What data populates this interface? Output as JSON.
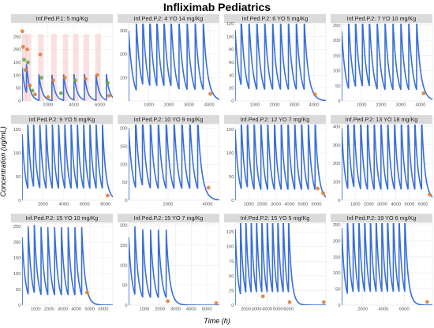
{
  "title": "Infliximab Pediatrics",
  "xlabel": "Time (h)",
  "ylabel": "Concentration (ug/mL)",
  "colors": {
    "line": "#3a6fd8",
    "obs_orange": "#e0803a",
    "obs_green": "#6aa84f",
    "band": "#f5c6c6"
  },
  "chart_data": [
    {
      "type": "line",
      "title": "Inf.Ped.P.1: 5 mg/Kg",
      "xlim": [
        0,
        7000
      ],
      "ylim": [
        0,
        300
      ],
      "xticks": [
        2000,
        4000,
        6000
      ],
      "yticks": [
        0,
        50,
        100,
        150,
        200,
        250
      ],
      "doses": [
        0,
        340,
        1300,
        2300,
        3200,
        4000,
        4800,
        5700,
        6500
      ],
      "peak": [
        130,
        110,
        100,
        100,
        100,
        100,
        100,
        100,
        100
      ],
      "halflife": 170,
      "observations": [
        {
          "x": 20,
          "y": 270,
          "c": "o"
        },
        {
          "x": 80,
          "y": 210,
          "c": "o"
        },
        {
          "x": 150,
          "y": 160,
          "c": "g"
        },
        {
          "x": 250,
          "y": 120,
          "c": "o"
        },
        {
          "x": 400,
          "y": 200,
          "c": "o"
        },
        {
          "x": 450,
          "y": 150,
          "c": "g"
        },
        {
          "x": 600,
          "y": 60,
          "c": "o"
        },
        {
          "x": 800,
          "y": 40,
          "c": "g"
        },
        {
          "x": 1000,
          "y": 25,
          "c": "o"
        },
        {
          "x": 1400,
          "y": 180,
          "c": "o"
        },
        {
          "x": 1500,
          "y": 90,
          "c": "g"
        },
        {
          "x": 2000,
          "y": 15,
          "c": "o"
        },
        {
          "x": 2400,
          "y": 80,
          "c": "o"
        },
        {
          "x": 3000,
          "y": 30,
          "c": "g"
        },
        {
          "x": 3300,
          "y": 90,
          "c": "o"
        },
        {
          "x": 4100,
          "y": 80,
          "c": "g"
        },
        {
          "x": 4900,
          "y": 85,
          "c": "o"
        },
        {
          "x": 5800,
          "y": 100,
          "c": "o"
        },
        {
          "x": 6600,
          "y": 70,
          "c": "g"
        },
        {
          "x": 6700,
          "y": 20,
          "c": "o"
        }
      ]
    },
    {
      "type": "line",
      "title": "Inf.Ped.P.2: 4 YO 14 mg/Kg",
      "xlim": [
        0,
        4500
      ],
      "ylim": [
        0,
        330
      ],
      "xticks": [
        1000,
        2000,
        3000,
        4000
      ],
      "yticks": [
        100,
        200,
        300
      ],
      "doses": [
        0,
        380,
        700,
        1050,
        1400,
        1750,
        2100,
        2500,
        2900,
        3300,
        3700
      ],
      "peak": [
        300
      ],
      "halflife": 140,
      "observations": [
        {
          "x": 4050,
          "y": 30,
          "c": "o"
        }
      ]
    },
    {
      "type": "line",
      "title": "Inf.Ped.P.2: 6 YO 5 mg/Kg",
      "xlim": [
        0,
        4600
      ],
      "ylim": [
        0,
        120
      ],
      "xticks": [
        1000,
        2000,
        3000,
        4000
      ],
      "yticks": [
        0,
        20,
        40,
        60,
        80,
        100,
        120
      ],
      "doses": [
        0,
        300,
        700,
        1100,
        1500,
        1900,
        2300,
        2700,
        3100,
        3500
      ],
      "peak": [
        110
      ],
      "halflife": 140,
      "observations": [
        {
          "x": 4050,
          "y": 10,
          "c": "o"
        }
      ]
    },
    {
      "type": "line",
      "title": "Inf.Ped.P.2: 7 YO 10 mg/Kg",
      "xlim": [
        0,
        4600
      ],
      "ylim": [
        0,
        255
      ],
      "xticks": [
        1000,
        2000,
        3000,
        4000
      ],
      "yticks": [
        0,
        50,
        100,
        150,
        200,
        250
      ],
      "doses": [
        0,
        350,
        700,
        1050,
        1400,
        1800,
        2200,
        2600,
        3000,
        3400,
        3800
      ],
      "peak": [
        230
      ],
      "halflife": 140,
      "observations": [
        {
          "x": 4150,
          "y": 25,
          "c": "o"
        }
      ]
    },
    {
      "type": "line",
      "title": "Inf.Ped.P.2: 9 YO 5 mg/Kg",
      "xlim": [
        0,
        8700
      ],
      "ylim": [
        0,
        160
      ],
      "xticks": [
        2000,
        4000,
        6000,
        8000
      ],
      "yticks": [
        0,
        50,
        100,
        150
      ],
      "doses": [
        0,
        550,
        1100,
        1700,
        2300,
        2900,
        3500,
        4100,
        4700,
        5300,
        5900,
        6500,
        7100,
        7700
      ],
      "peak": [
        140
      ],
      "halflife": 220,
      "observations": [
        {
          "x": 8200,
          "y": 10,
          "c": "o"
        }
      ]
    },
    {
      "type": "line",
      "title": "Inf.Ped.P.2: 10 YO 9 mg/Kg",
      "xlim": [
        0,
        4600
      ],
      "ylim": [
        0,
        210
      ],
      "xticks": [
        2000,
        4000
      ],
      "yticks": [
        0,
        50,
        100,
        150,
        200
      ],
      "doses": [
        0,
        350,
        700,
        1100,
        1500,
        1900,
        2300,
        2700,
        3100,
        3500
      ],
      "peak": [
        200
      ],
      "halflife": 140,
      "observations": [
        {
          "x": 4050,
          "y": 35,
          "c": "o"
        }
      ]
    },
    {
      "type": "line",
      "title": "Inf.Ped.P.2: 12 YO 7 mg/Kg",
      "xlim": [
        0,
        6700
      ],
      "ylim": [
        0,
        160
      ],
      "xticks": [
        1000,
        2000,
        3000,
        4000,
        5000,
        6000
      ],
      "yticks": [
        0,
        50,
        100,
        150
      ],
      "doses": [
        0,
        450,
        900,
        1400,
        1900,
        2400,
        2900,
        3400,
        3900,
        4400,
        4900,
        5400,
        5900
      ],
      "peak": [
        150
      ],
      "halflife": 170,
      "observations": [
        {
          "x": 6100,
          "y": 25,
          "c": "o"
        },
        {
          "x": 6500,
          "y": 15,
          "c": "o"
        }
      ]
    },
    {
      "type": "line",
      "title": "Inf.Ped.P.2: 13 YO 18 mg/Kg",
      "xlim": [
        0,
        6700
      ],
      "ylim": [
        0,
        410
      ],
      "xticks": [
        1000,
        2000,
        3000,
        4000,
        5000,
        6000
      ],
      "yticks": [
        0,
        100,
        200,
        300,
        400
      ],
      "doses": [
        0,
        450,
        900,
        1400,
        1900,
        2400,
        2900,
        3400,
        3900,
        4400,
        4900,
        5400,
        5900
      ],
      "peak": [
        390
      ],
      "halflife": 170,
      "observations": [
        {
          "x": 6500,
          "y": 30,
          "c": "o"
        }
      ]
    },
    {
      "type": "line",
      "title": "Inf.Ped.P.2: 15 YO 10 mg/Kg",
      "xlim": [
        0,
        6700
      ],
      "ylim": [
        0,
        260
      ],
      "xticks": [
        1000,
        2000,
        3000,
        4000,
        5000,
        6000
      ],
      "yticks": [
        0,
        50,
        100,
        150,
        200,
        250
      ],
      "doses": [
        0,
        450,
        900,
        1400,
        1900,
        2400,
        2900,
        3400,
        3900,
        4400
      ],
      "peak": [
        215
      ],
      "halflife": 170,
      "observations": [
        {
          "x": 4800,
          "y": 40,
          "c": "o"
        }
      ]
    },
    {
      "type": "line",
      "title": "Inf.Ped.P.2: 15 YO 7 mg/Kg",
      "xlim": [
        0,
        5800
      ],
      "ylim": [
        0,
        205
      ],
      "xticks": [
        1000,
        2000,
        3000,
        4000,
        5000
      ],
      "yticks": [
        0,
        50,
        100,
        150,
        200
      ],
      "doses": [
        0,
        400,
        900,
        1400,
        1900,
        2400
      ],
      "peak": [
        170
      ],
      "halflife": 150,
      "observations": [
        {
          "x": 2500,
          "y": 10,
          "c": "o"
        },
        {
          "x": 5600,
          "y": 5,
          "c": "o"
        }
      ]
    },
    {
      "type": "line",
      "title": "Inf.Ped.P.2: 15 YO 5 mg/Kg",
      "xlim": [
        1000,
        9500
      ],
      "ylim": [
        0,
        140
      ],
      "xticks": [
        2000,
        3000,
        4000,
        5000,
        6000
      ],
      "yticks": [
        0,
        25,
        50,
        75,
        100,
        125
      ],
      "doses": [
        1000,
        1500,
        2000,
        2500,
        3000,
        3500,
        4000,
        4500,
        5000,
        5500,
        6000
      ],
      "peak": [
        130
      ],
      "halflife": 180,
      "observations": [
        {
          "x": 3600,
          "y": 15,
          "c": "o"
        },
        {
          "x": 6100,
          "y": 5,
          "c": "o"
        },
        {
          "x": 9300,
          "y": 5,
          "c": "o"
        }
      ]
    },
    {
      "type": "line",
      "title": "Inf.Ped.P.2: 19 YO 6 mg/Kg",
      "xlim": [
        0,
        8700
      ],
      "ylim": [
        0,
        255
      ],
      "xticks": [
        2000,
        4000,
        6000
      ],
      "yticks": [
        0,
        50,
        100,
        150,
        200,
        250
      ],
      "doses": [
        0,
        550,
        1100,
        1650,
        2200,
        2750,
        3300,
        3850,
        4400,
        4950,
        5500,
        6050
      ],
      "peak": [
        240
      ],
      "halflife": 200,
      "observations": [
        {
          "x": 8200,
          "y": 10,
          "c": "o"
        }
      ]
    }
  ]
}
